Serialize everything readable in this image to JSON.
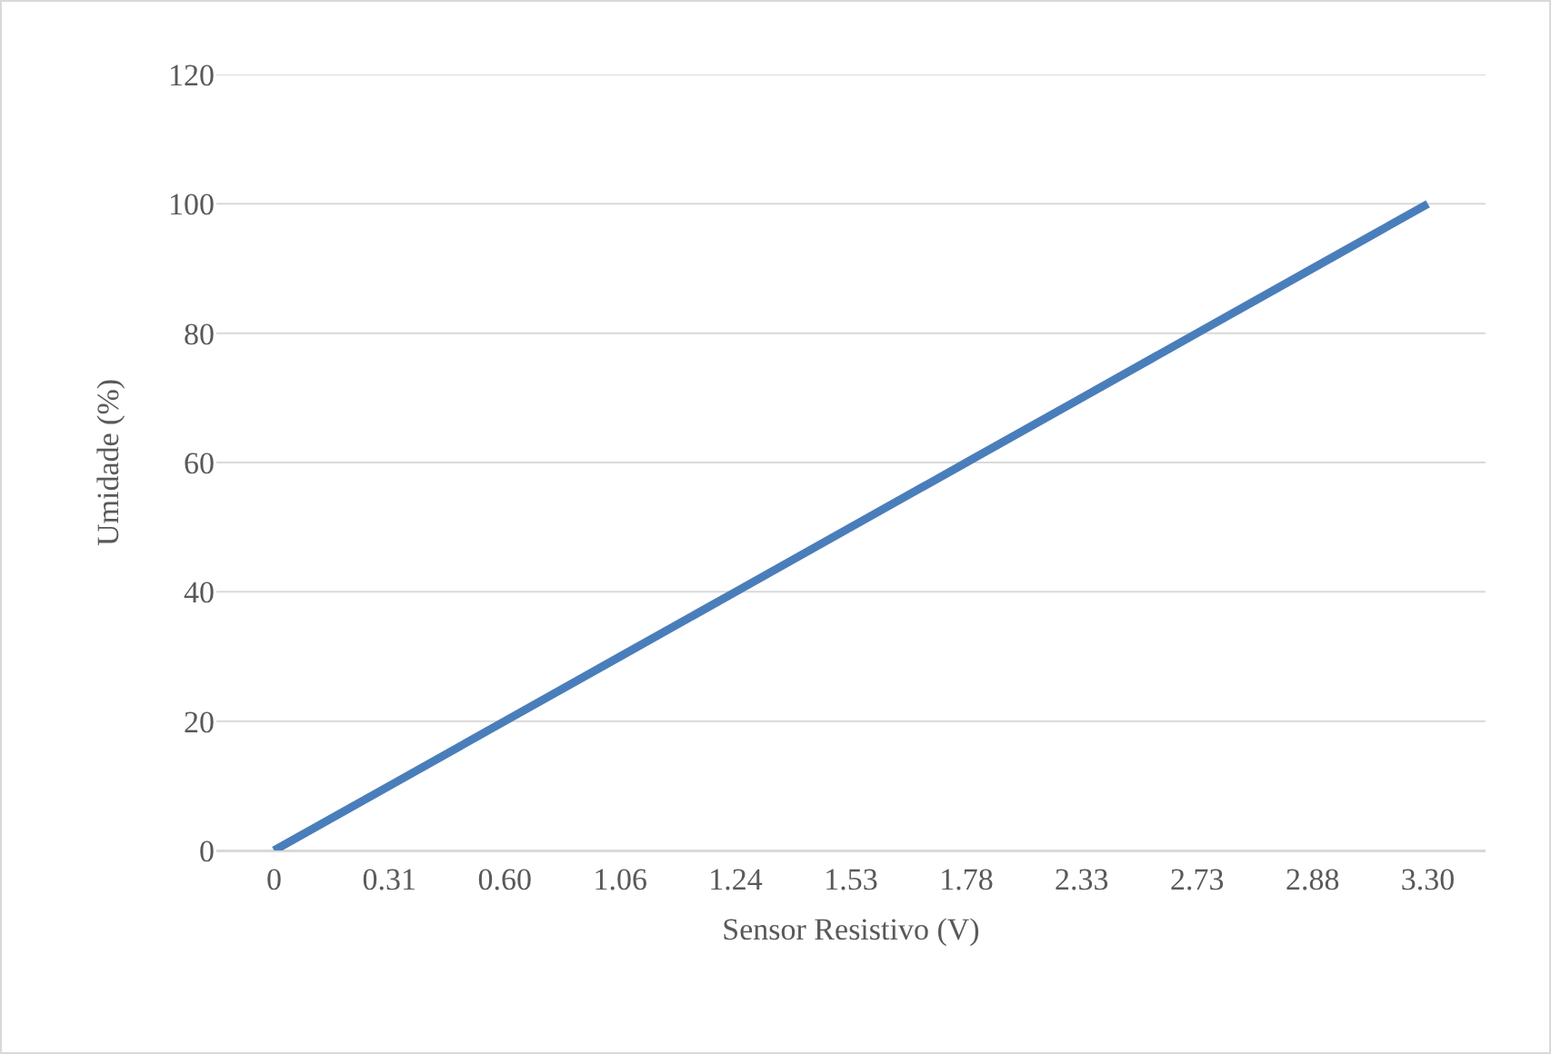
{
  "chart_data": {
    "type": "line",
    "xlabel": "Sensor Resistivo (V)",
    "ylabel": "Umidade (%)",
    "categories": [
      "0",
      "0.31",
      "0.60",
      "1.06",
      "1.24",
      "1.53",
      "1.78",
      "2.33",
      "2.73",
      "2.88",
      "3.30"
    ],
    "series": [
      {
        "color": "#4a7ebb",
        "values": [
          0,
          10,
          20,
          30,
          40,
          50,
          60,
          70,
          80,
          90,
          100
        ]
      }
    ],
    "ylim": [
      0,
      120
    ],
    "yticks": [
      0,
      20,
      40,
      60,
      80,
      100,
      120
    ],
    "grid": "y",
    "marker": "none",
    "line_style": "solid"
  }
}
